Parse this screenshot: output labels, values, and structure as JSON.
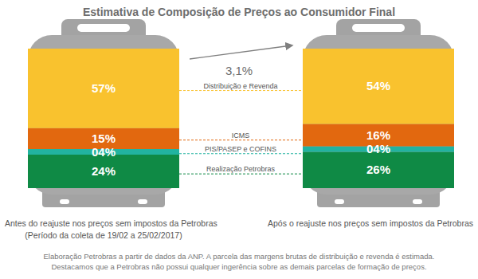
{
  "chart_data": {
    "type": "bar",
    "stacked": true,
    "title": "Estimativa de Composição de Preços ao Consumidor Final",
    "categories": [
      "Antes do reajuste nos preços sem impostos da Petrobras",
      "Após o reajuste nos preços sem impostos da Petrobras"
    ],
    "series": [
      {
        "name": "Realização Petrobras",
        "color": "#0f8a45",
        "values": [
          24,
          26
        ],
        "value_labels": [
          "24%",
          "26%"
        ]
      },
      {
        "name": "PIS/PASEP e COFINS",
        "color": "#22b3a0",
        "values": [
          4,
          4
        ],
        "value_labels": [
          "04%",
          "04%"
        ]
      },
      {
        "name": "ICMS",
        "color": "#e2680f",
        "values": [
          15,
          16
        ],
        "value_labels": [
          "15%",
          "16%"
        ]
      },
      {
        "name": "Distribuição e Revenda",
        "color": "#f9c22e",
        "values": [
          57,
          54
        ],
        "value_labels": [
          "57%",
          "54%"
        ]
      }
    ],
    "ylim": [
      0,
      100
    ],
    "tick_labels": false,
    "data_labels": true,
    "annotations": [
      "3,1%",
      "(Período da coleta de 19/02 a 25/02/2017)"
    ],
    "footnote": [
      "Elaboração Petrobras a partir de dados da ANP. A parcela das margens brutas de distribuição e revenda é estimada.",
      "Destacamos que a Petrobras não possui qualquer ingerência sobre as demais parcelas de formação de preços."
    ]
  }
}
